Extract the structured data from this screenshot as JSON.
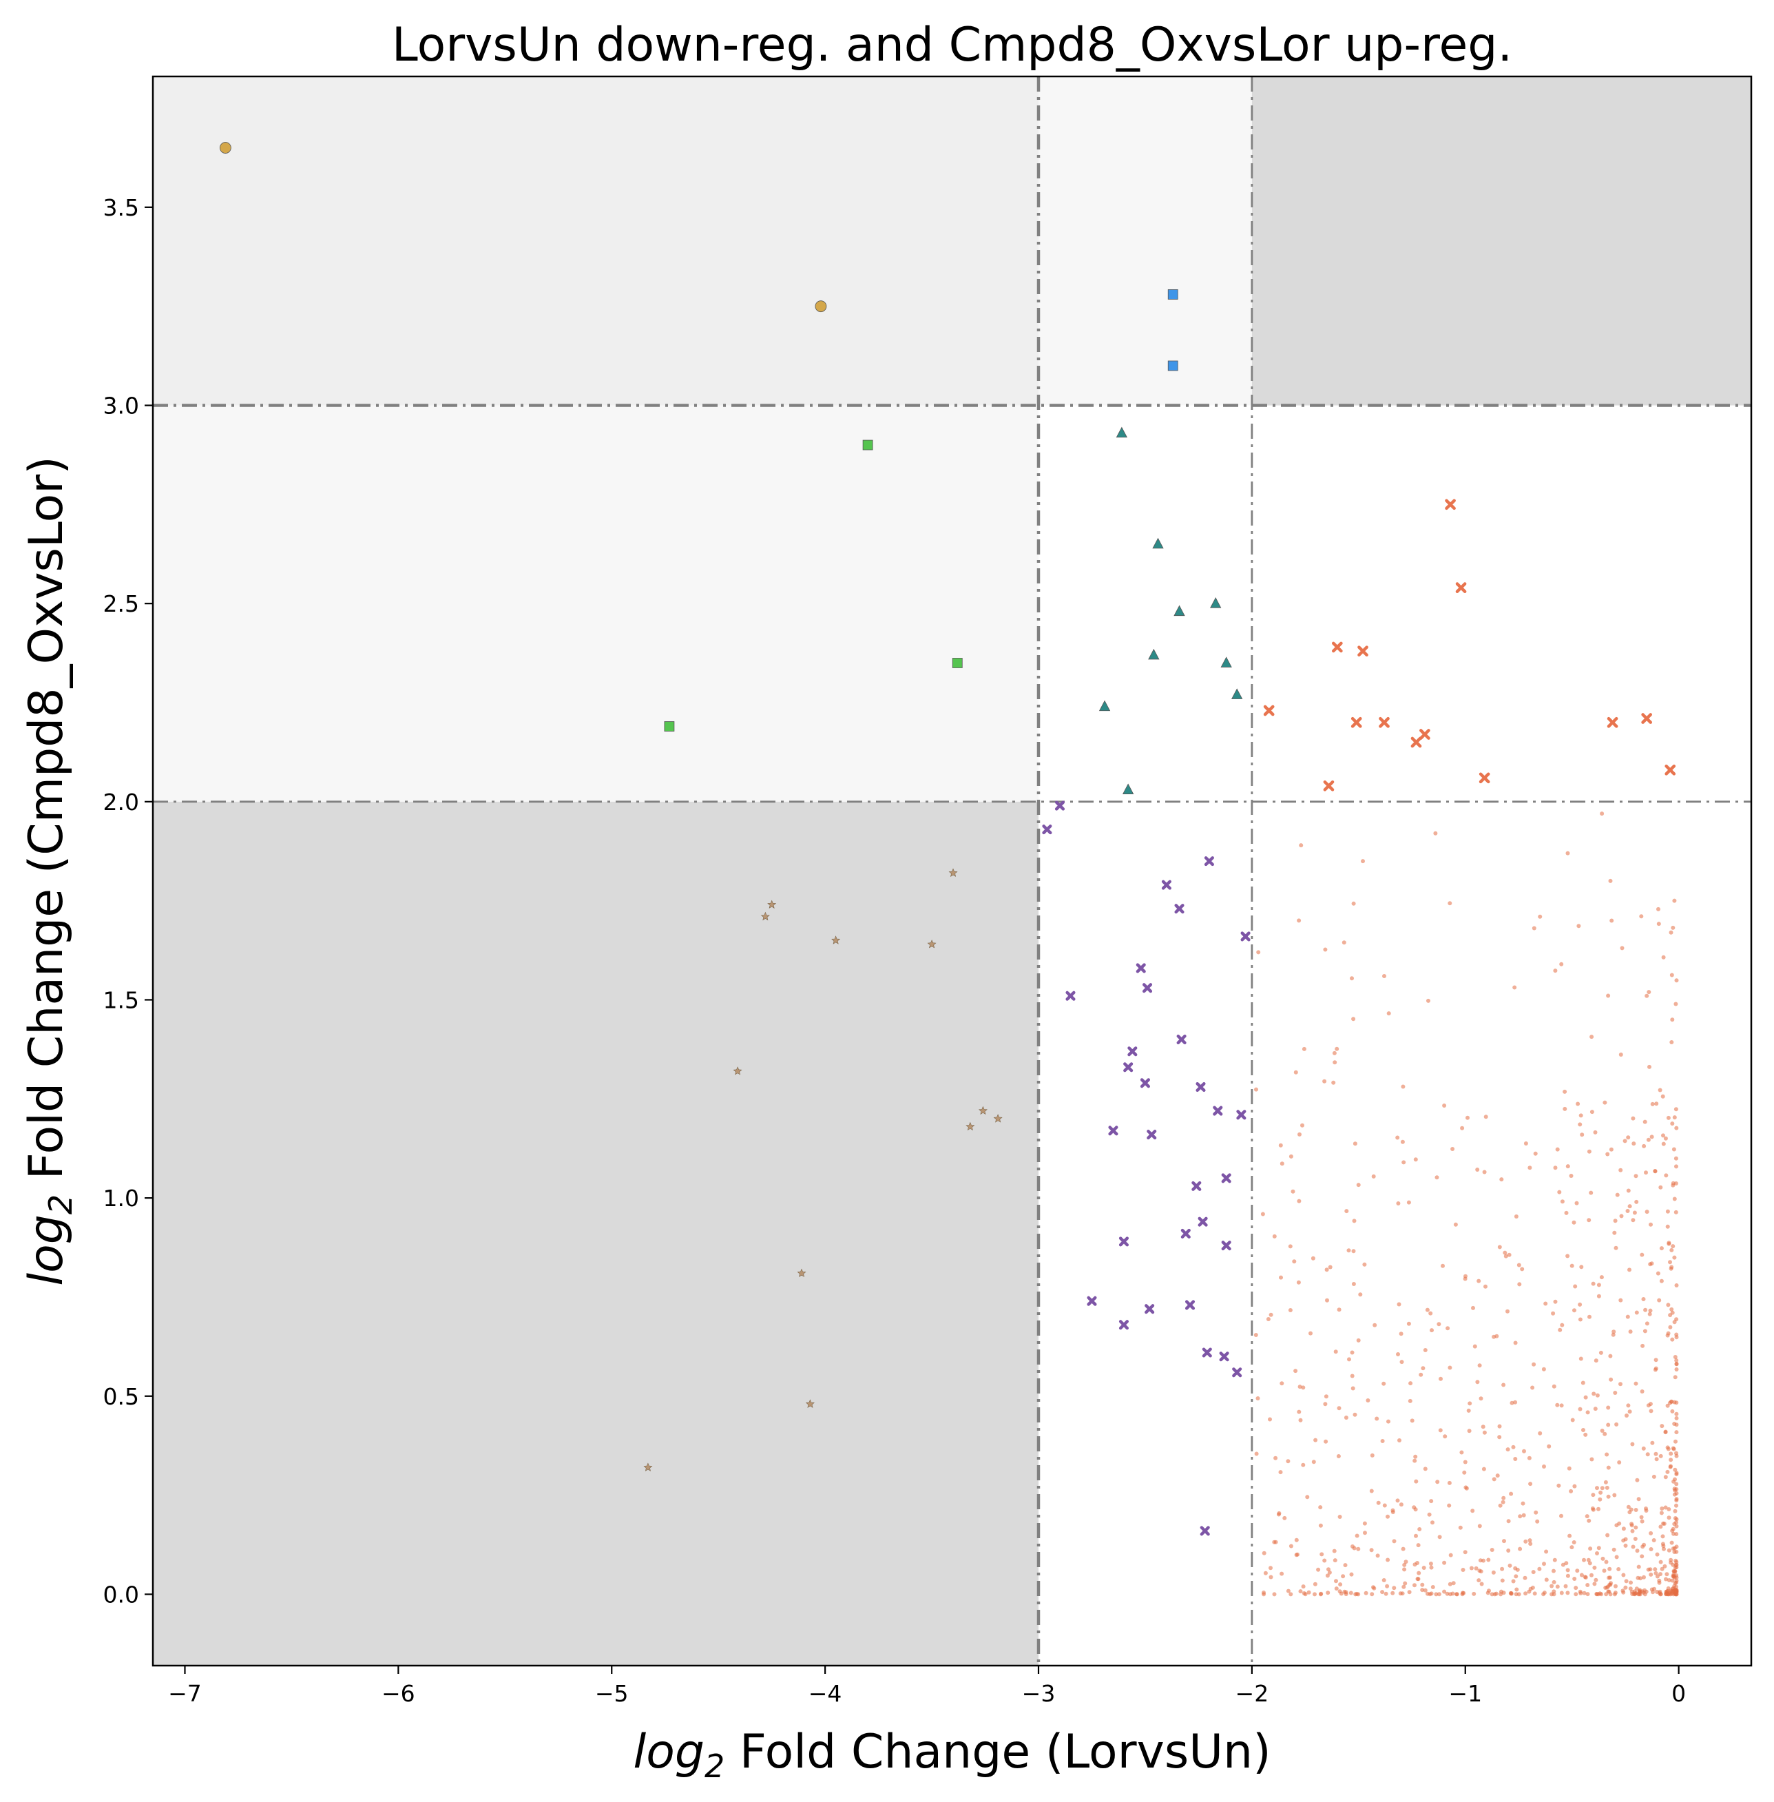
{
  "chart_data": {
    "type": "scatter",
    "title": "LorvsUn down-reg. and Cmpd8_OxvsLor up-reg.",
    "xlabel": {
      "prefix": "log",
      "sub": "2",
      "rest": " Fold Change (LorvsUn)"
    },
    "ylabel": {
      "prefix": "log",
      "sub": "2",
      "rest": " Fold Change (Cmpd8_OxvsLor)"
    },
    "xlim": [
      -7.15,
      0.34
    ],
    "ylim": [
      -0.18,
      3.83
    ],
    "xticks": [
      -7,
      -6,
      -5,
      -4,
      -3,
      -2,
      -1,
      0
    ],
    "yticks": [
      0.0,
      0.5,
      1.0,
      1.5,
      2.0,
      2.5,
      3.0,
      3.5
    ],
    "xtick_labels": [
      "−7",
      "−6",
      "−5",
      "−4",
      "−3",
      "−2",
      "−1",
      "0"
    ],
    "ytick_labels": [
      "0.0",
      "0.5",
      "1.0",
      "1.5",
      "2.0",
      "2.5",
      "3.0",
      "3.5"
    ],
    "thresholds": {
      "x_strong": -3,
      "x_weak": -2,
      "y_weak": 2,
      "y_strong": 3
    },
    "regions": [
      {
        "x": [
          -7.15,
          -3
        ],
        "y": [
          3,
          3.83
        ],
        "color": "#efefef"
      },
      {
        "x": [
          -3,
          -2
        ],
        "y": [
          3,
          3.83
        ],
        "color": "#f7f7f7"
      },
      {
        "x": [
          -2,
          0.34
        ],
        "y": [
          3,
          3.83
        ],
        "color": "#dadada"
      },
      {
        "x": [
          -7.15,
          -3
        ],
        "y": [
          2,
          3
        ],
        "color": "#f7f7f7"
      },
      {
        "x": [
          -7.15,
          -3
        ],
        "y": [
          -0.18,
          2
        ],
        "color": "#dadada"
      }
    ],
    "series": [
      {
        "marker": "circle",
        "color": "#d4a74a",
        "size": 16,
        "points": [
          [
            -6.81,
            3.65
          ],
          [
            -4.02,
            3.25
          ]
        ]
      },
      {
        "marker": "square",
        "color": "#3f95e8",
        "size": 14,
        "points": [
          [
            -2.37,
            3.28
          ],
          [
            -2.37,
            3.1
          ]
        ]
      },
      {
        "marker": "square",
        "color": "#55c44f",
        "size": 14,
        "points": [
          [
            -3.8,
            2.9
          ],
          [
            -3.38,
            2.35
          ],
          [
            -4.73,
            2.19
          ]
        ]
      },
      {
        "marker": "triangle",
        "color": "#2d8a87",
        "size": 15,
        "points": [
          [
            -2.61,
            2.93
          ],
          [
            -2.44,
            2.65
          ],
          [
            -2.17,
            2.5
          ],
          [
            -2.34,
            2.48
          ],
          [
            -2.46,
            2.37
          ],
          [
            -2.12,
            2.35
          ],
          [
            -2.07,
            2.27
          ],
          [
            -2.69,
            2.24
          ],
          [
            -2.58,
            2.03
          ]
        ]
      },
      {
        "marker": "x",
        "color": "#e8744e",
        "size": 14,
        "points": [
          [
            -1.07,
            2.75
          ],
          [
            -1.02,
            2.54
          ],
          [
            -1.6,
            2.39
          ],
          [
            -1.48,
            2.38
          ],
          [
            -1.92,
            2.23
          ],
          [
            -1.51,
            2.2
          ],
          [
            -1.38,
            2.2
          ],
          [
            -1.19,
            2.17
          ],
          [
            -1.23,
            2.15
          ],
          [
            -0.31,
            2.2
          ],
          [
            -0.15,
            2.21
          ],
          [
            -0.91,
            2.06
          ],
          [
            -1.64,
            2.04
          ],
          [
            -0.04,
            2.08
          ]
        ]
      },
      {
        "marker": "x",
        "color": "#7d55a6",
        "size": 12,
        "points": [
          [
            -2.9,
            1.99
          ],
          [
            -2.96,
            1.93
          ],
          [
            -2.2,
            1.85
          ],
          [
            -2.4,
            1.79
          ],
          [
            -2.34,
            1.73
          ],
          [
            -2.03,
            1.66
          ],
          [
            -2.52,
            1.58
          ],
          [
            -2.49,
            1.53
          ],
          [
            -2.85,
            1.51
          ],
          [
            -2.33,
            1.4
          ],
          [
            -2.56,
            1.37
          ],
          [
            -2.58,
            1.33
          ],
          [
            -2.5,
            1.29
          ],
          [
            -2.24,
            1.28
          ],
          [
            -2.16,
            1.22
          ],
          [
            -2.05,
            1.21
          ],
          [
            -2.65,
            1.17
          ],
          [
            -2.47,
            1.16
          ],
          [
            -2.12,
            1.05
          ],
          [
            -2.26,
            1.03
          ],
          [
            -2.23,
            0.94
          ],
          [
            -2.31,
            0.91
          ],
          [
            -2.6,
            0.89
          ],
          [
            -2.12,
            0.88
          ],
          [
            -2.75,
            0.74
          ],
          [
            -2.48,
            0.72
          ],
          [
            -2.29,
            0.73
          ],
          [
            -2.6,
            0.68
          ],
          [
            -2.21,
            0.61
          ],
          [
            -2.13,
            0.6
          ],
          [
            -2.07,
            0.56
          ],
          [
            -2.22,
            0.16
          ]
        ]
      },
      {
        "marker": "star",
        "color": "#b89573",
        "size": 11,
        "points": [
          [
            -3.4,
            1.82
          ],
          [
            -4.25,
            1.74
          ],
          [
            -4.28,
            1.71
          ],
          [
            -3.95,
            1.65
          ],
          [
            -3.5,
            1.64
          ],
          [
            -4.41,
            1.32
          ],
          [
            -3.26,
            1.22
          ],
          [
            -3.19,
            1.2
          ],
          [
            -3.32,
            1.18
          ],
          [
            -4.11,
            0.81
          ],
          [
            -4.07,
            0.48
          ],
          [
            -4.83,
            0.32
          ]
        ]
      }
    ],
    "background": {
      "marker": "dot",
      "color": "#e36d44",
      "opacity": 0.55,
      "size": 6,
      "count": 900,
      "note_points": [
        [
          -0.36,
          1.97
        ],
        [
          -1.14,
          1.92
        ],
        [
          -0.52,
          1.87
        ],
        [
          -1.48,
          1.85
        ],
        [
          -1.77,
          1.89
        ],
        [
          -0.32,
          1.8
        ],
        [
          -1.78,
          1.7
        ],
        [
          -0.65,
          1.71
        ],
        [
          -1.97,
          1.62
        ],
        [
          -1.38,
          1.56
        ],
        [
          -0.55,
          1.59
        ],
        [
          -0.15,
          1.51
        ],
        [
          -0.02,
          1.75
        ],
        [
          -0.03,
          1.45
        ]
      ]
    }
  }
}
